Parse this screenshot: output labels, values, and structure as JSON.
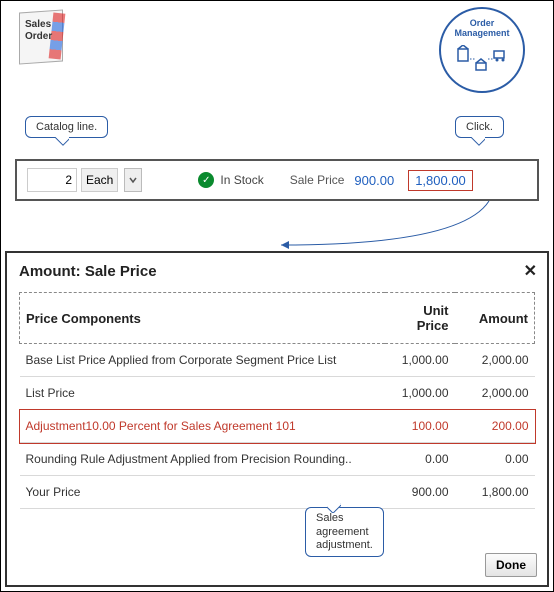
{
  "icons": {
    "sales_order": {
      "line1": "Sales",
      "line2": "Order"
    },
    "om": {
      "line1": "Order",
      "line2": "Management"
    }
  },
  "callouts": {
    "catalog": "Catalog line.",
    "click": "Click.",
    "adjustment": {
      "line1": "Sales",
      "line2": "agreement",
      "line3": "adjustment."
    }
  },
  "row": {
    "qty": "2",
    "unit": "Each",
    "stock": "In Stock",
    "sale_label": "Sale Price",
    "unit_price": "900.00",
    "total": "1,800.00",
    "colors": {
      "link": "#1f5fbf",
      "highlight_border": "#c0392b",
      "stock_green": "#0a8a2e"
    }
  },
  "panel": {
    "title": "Amount: Sale Price",
    "headers": {
      "comp": "Price Components",
      "unit": "Unit Price",
      "amount": "Amount"
    },
    "rows": [
      {
        "label": "Base List Price Applied from Corporate Segment Price List",
        "unit": "1,000.00",
        "amount": "2,000.00",
        "hl": false
      },
      {
        "label": "List Price",
        "unit": "1,000.00",
        "amount": "2,000.00",
        "hl": false
      },
      {
        "label": "Adjustment10.00 Percent for Sales Agreement 101",
        "unit": "100.00",
        "amount": "200.00",
        "hl": true
      },
      {
        "label": "Rounding Rule Adjustment Applied from Precision Rounding..",
        "unit": "0.00",
        "amount": "0.00",
        "hl": false
      },
      {
        "label": "Your Price",
        "unit": "900.00",
        "amount": "1,800.00",
        "hl": false
      }
    ],
    "done": "Done"
  }
}
